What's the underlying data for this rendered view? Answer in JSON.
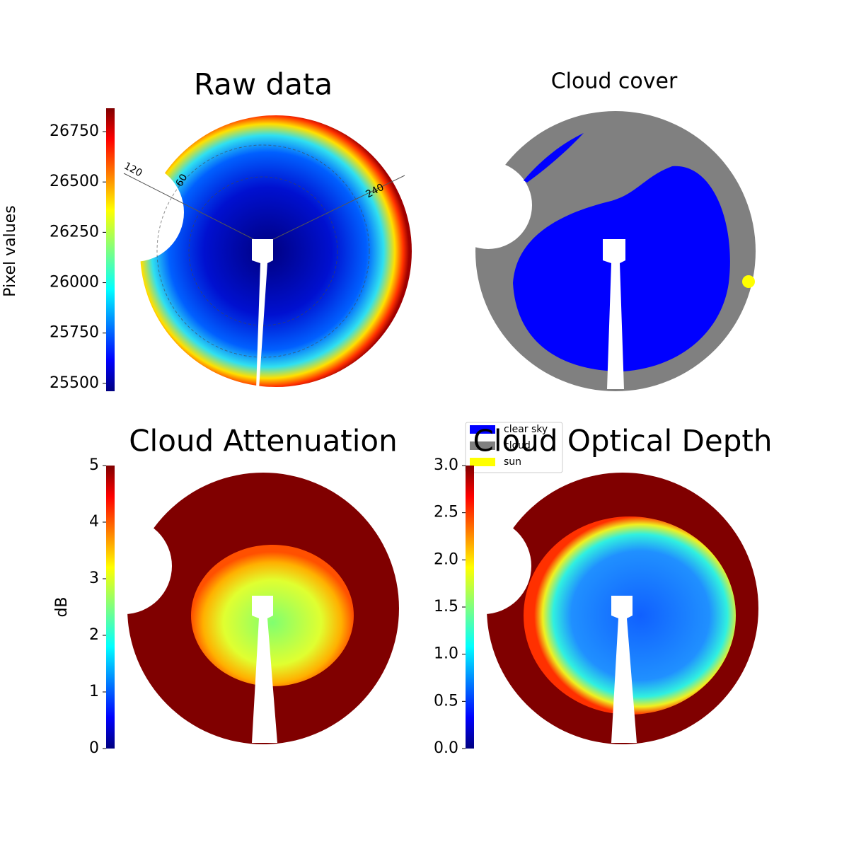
{
  "chart_data": [
    {
      "type": "image",
      "title": "Raw data",
      "colorbar": {
        "label": "Pixel values",
        "lim": [
          25461,
          26866
        ],
        "ticks": [
          25500,
          25750,
          26000,
          26250,
          26500,
          26750
        ]
      },
      "annotations": [
        "120",
        "60",
        "240"
      ]
    },
    {
      "type": "image",
      "title": "Cloud cover",
      "legend": [
        {
          "name": "clear sky",
          "color": "#0000ff"
        },
        {
          "name": "cloud",
          "color": "#808080"
        },
        {
          "name": "sun",
          "color": "#ffff00"
        }
      ]
    },
    {
      "type": "image",
      "title": "Cloud Attenuation",
      "colorbar": {
        "label": "dB",
        "lim": [
          0,
          5
        ],
        "ticks": [
          0,
          1,
          2,
          3,
          4,
          5
        ]
      }
    },
    {
      "type": "image",
      "title": "Cloud Optical Depth",
      "colorbar": {
        "lim": [
          0,
          3
        ],
        "ticks": [
          {
            "value": 0,
            "label": "0.0"
          },
          {
            "value": 0.5,
            "label": "0.5"
          },
          {
            "value": 1,
            "label": "1.0"
          },
          {
            "value": 1.5,
            "label": "1.5"
          },
          {
            "value": 2,
            "label": "2.0"
          },
          {
            "value": 2.5,
            "label": "2.5"
          },
          {
            "value": 3,
            "label": "3.0"
          }
        ]
      }
    }
  ]
}
